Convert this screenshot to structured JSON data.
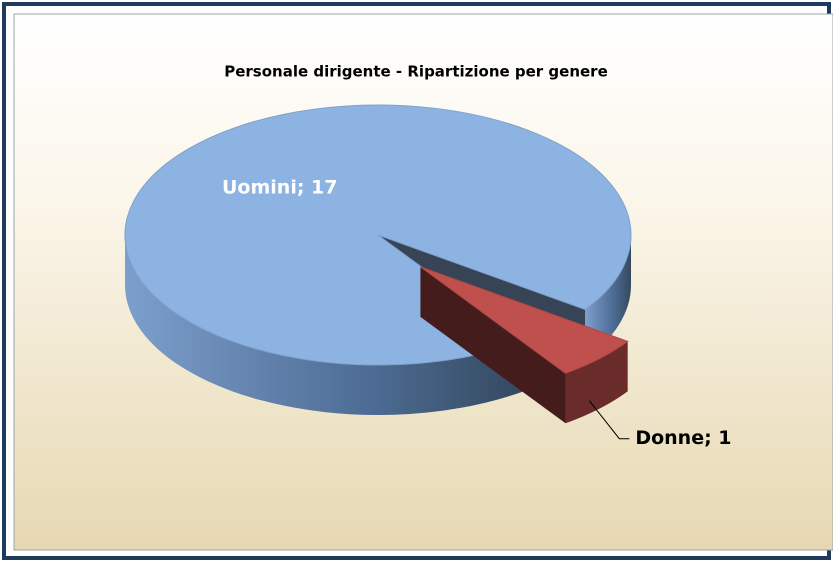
{
  "chart_data": {
    "type": "pie",
    "title": "Personale dirigente - Ripartizione per genere",
    "categories": [
      "Uomini",
      "Donne"
    ],
    "values": [
      17,
      1
    ],
    "value_labels": [
      "Uomini; 17",
      "Donne; 1"
    ],
    "colors": [
      "#8db3e2",
      "#c0504d"
    ]
  }
}
